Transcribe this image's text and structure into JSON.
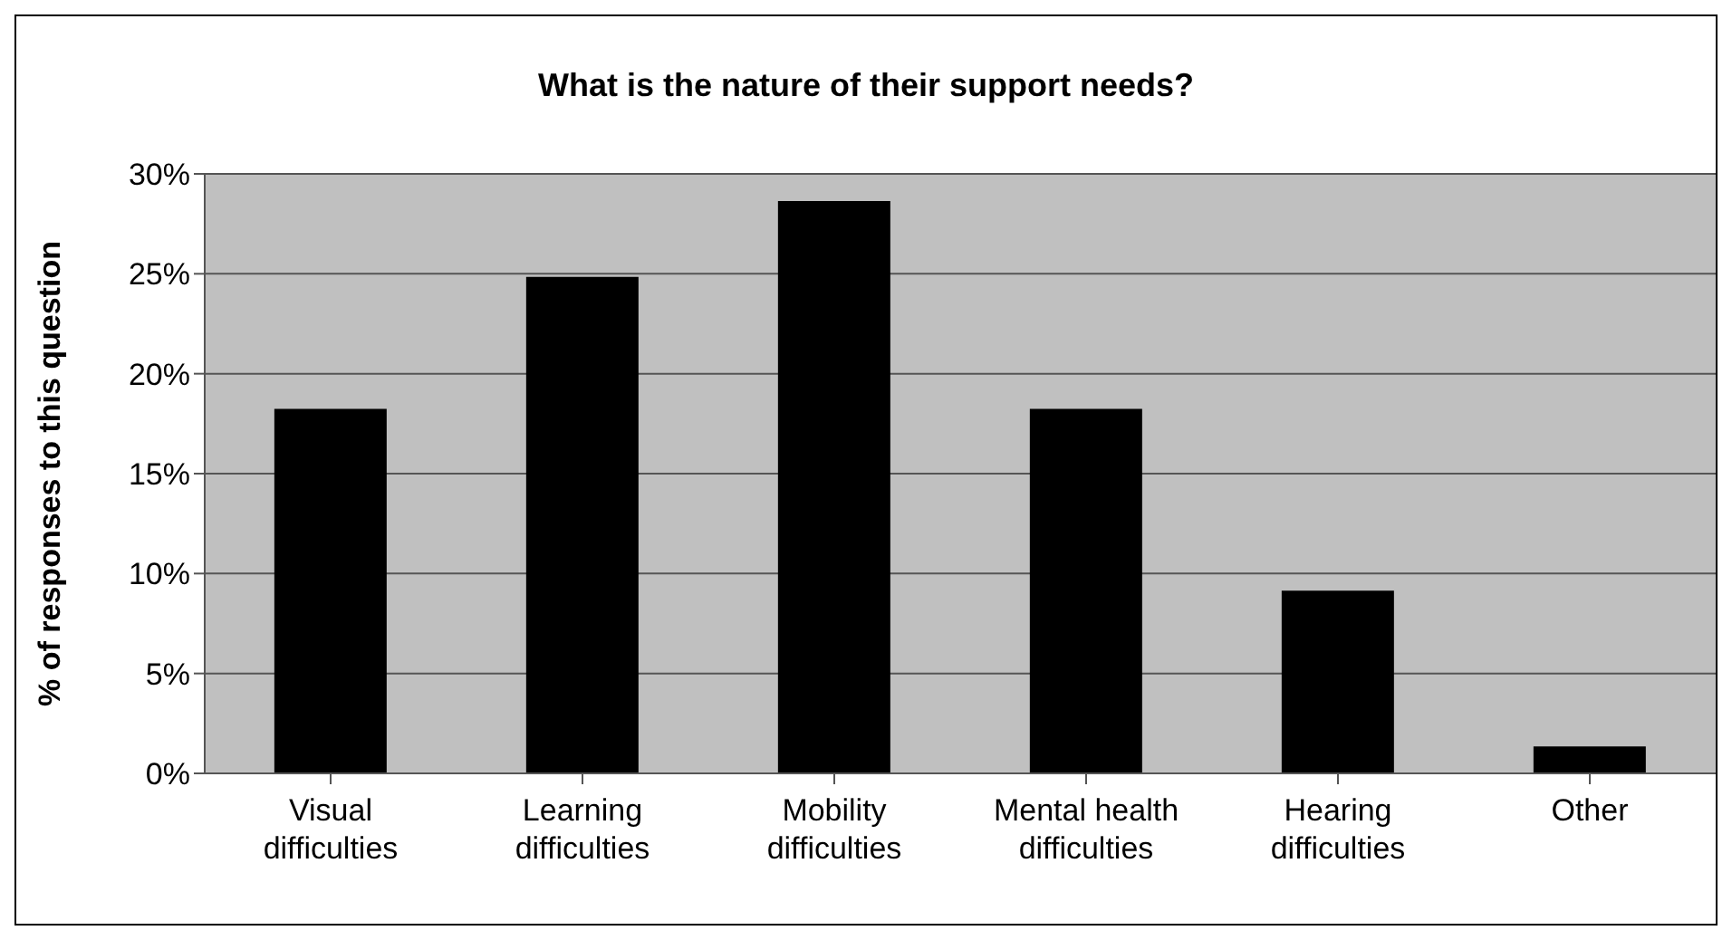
{
  "chart_data": {
    "type": "bar",
    "title": "What is the nature of their support needs?",
    "ylabel": "% of responses to this question",
    "categories": [
      "Visual difficulties",
      "Learning difficulties",
      "Mobility difficulties",
      "Mental health difficulties",
      "Hearing difficulties",
      "Other"
    ],
    "values": [
      18.2,
      24.8,
      28.6,
      18.2,
      9.1,
      1.3
    ],
    "color": "#000000",
    "ylim": [
      0,
      30
    ],
    "yticks": [
      {
        "value": 0,
        "label": "0%"
      },
      {
        "value": 5,
        "label": "5%"
      },
      {
        "value": 10,
        "label": "10%"
      },
      {
        "value": 15,
        "label": "15%"
      },
      {
        "value": 20,
        "label": "20%"
      },
      {
        "value": 25,
        "label": "25%"
      },
      {
        "value": 30,
        "label": "30%"
      }
    ],
    "grid": "y",
    "legend": false
  }
}
